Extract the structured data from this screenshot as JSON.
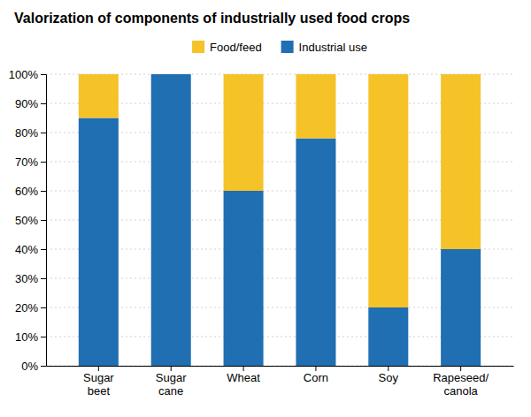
{
  "chart_data": {
    "type": "bar",
    "stacked": true,
    "title": "Valorization of components of industrially used food crops",
    "categories": [
      "Sugar\nbeet",
      "Sugar\ncane",
      "Wheat",
      "Corn",
      "Soy",
      "Rapeseed/\ncanola"
    ],
    "series": [
      {
        "name": "Industrial use",
        "color": "#1f6fb2",
        "values": [
          85,
          100,
          60,
          78,
          20,
          40
        ]
      },
      {
        "name": "Food/feed",
        "color": "#f5c228",
        "values": [
          15,
          0,
          40,
          22,
          80,
          60
        ]
      }
    ],
    "ylim": [
      0,
      100
    ],
    "yticks": [
      {
        "value": 0,
        "label": "0%"
      },
      {
        "value": 10,
        "label": "10%"
      },
      {
        "value": 20,
        "label": "20%"
      },
      {
        "value": 30,
        "label": "30%"
      },
      {
        "value": 40,
        "label": "40%"
      },
      {
        "value": 50,
        "label": "50%"
      },
      {
        "value": 60,
        "label": "60%"
      },
      {
        "value": 70,
        "label": "70%"
      },
      {
        "value": 80,
        "label": "80%"
      },
      {
        "value": 90,
        "label": "90%"
      },
      {
        "value": 100,
        "label": "100%"
      }
    ],
    "grid": true,
    "legend": "top"
  }
}
